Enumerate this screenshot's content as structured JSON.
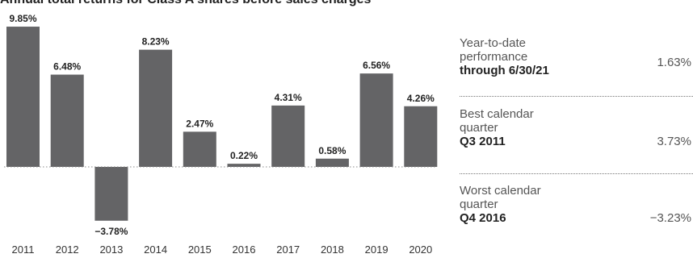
{
  "title": "Annual total returns for Class A shares before sales charges",
  "chart_data": {
    "type": "bar",
    "title": "Annual total returns for Class A shares before sales charges",
    "categories": [
      "2011",
      "2012",
      "2013",
      "2014",
      "2015",
      "2016",
      "2017",
      "2018",
      "2019",
      "2020"
    ],
    "values": [
      9.85,
      6.48,
      -3.78,
      8.23,
      2.47,
      0.22,
      4.31,
      0.58,
      6.56,
      4.26
    ],
    "labels": [
      "9.85%",
      "6.48%",
      "−3.78%",
      "8.23%",
      "2.47%",
      "0.22%",
      "4.31%",
      "0.58%",
      "6.56%",
      "4.26%"
    ],
    "ylim": [
      -4.4,
      9.85
    ],
    "bar_color": "#646466",
    "grid": false,
    "zero_line": "dotted"
  },
  "stats": [
    {
      "desc": "Year-to-date performance",
      "period": "through 6/30/21",
      "value": "1.63%"
    },
    {
      "desc": "Best calendar quarter",
      "period": "Q3 2011",
      "value": "3.73%"
    },
    {
      "desc": "Worst calendar quarter",
      "period": "Q4 2016",
      "value": "−3.23%"
    }
  ]
}
